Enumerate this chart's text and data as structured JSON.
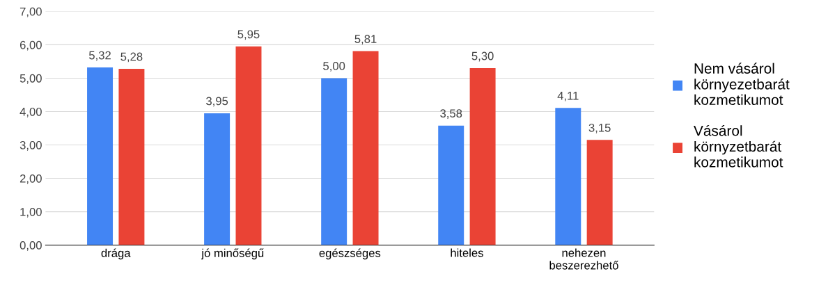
{
  "chart_data": {
    "type": "bar",
    "categories": [
      "drága",
      "jó minőségű",
      "egészséges",
      "hiteles",
      "nehezen beszerezhető"
    ],
    "series": [
      {
        "name": "Nem vásárol környezetbarát kozmetikumot",
        "color": "#4285f4",
        "values": [
          5.32,
          3.95,
          5.0,
          3.58,
          4.11
        ],
        "value_labels": [
          "5,32",
          "3,95",
          "5,00",
          "3,58",
          "4,11"
        ]
      },
      {
        "name": "Vásárol környzetbarát kozmetikumot",
        "color": "#ea4335",
        "values": [
          5.28,
          5.95,
          5.81,
          5.3,
          3.15
        ],
        "value_labels": [
          "5,28",
          "5,95",
          "5,81",
          "5,30",
          "3,15"
        ]
      }
    ],
    "ylim": [
      0,
      7
    ],
    "yticks": [
      {
        "value": 0,
        "label": "0,00"
      },
      {
        "value": 1,
        "label": "1,00"
      },
      {
        "value": 2,
        "label": "2,00"
      },
      {
        "value": 3,
        "label": "3,00"
      },
      {
        "value": 4,
        "label": "4,00"
      },
      {
        "value": 5,
        "label": "5,00"
      },
      {
        "value": 6,
        "label": "6,00"
      },
      {
        "value": 7,
        "label": "7,00"
      }
    ],
    "grid": "y",
    "legend": "right"
  }
}
